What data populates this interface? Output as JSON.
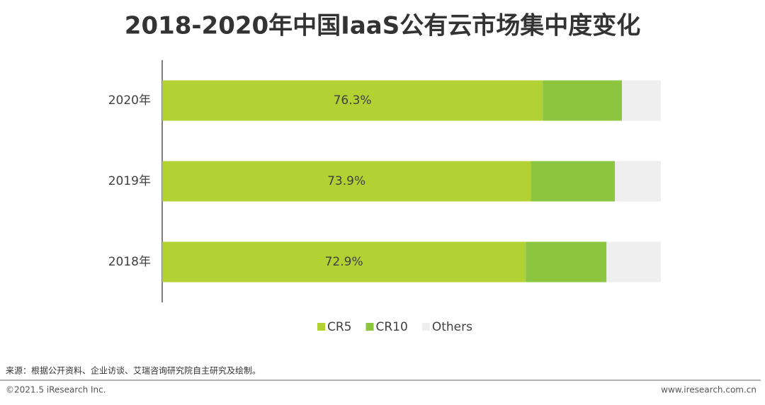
{
  "chart_data": {
    "type": "stacked-bar-horizontal",
    "title": "2018-2020年中国IaaS公有云市场集中度变化",
    "categories": [
      "2020年",
      "2019年",
      "2018年"
    ],
    "series": [
      {
        "name": "CR5",
        "color": "#b2d234",
        "values": [
          76.3,
          73.9,
          72.9
        ],
        "value_labels": [
          "76.3%",
          "73.9%",
          "72.9%"
        ]
      },
      {
        "name": "CR10",
        "color": "#8cc540",
        "values": [
          15.9,
          16.9,
          16.2
        ]
      },
      {
        "name": "Others",
        "color": "#efefef",
        "values": [
          7.8,
          9.2,
          10.9
        ]
      }
    ],
    "xlim": [
      0,
      100
    ],
    "source": "来源：根据公开资料、企业访谈、艾瑞咨询研究院自主研究及绘制。",
    "copyright": "©2021.5 iResearch Inc.",
    "website": "www.iresearch.com.cn"
  }
}
